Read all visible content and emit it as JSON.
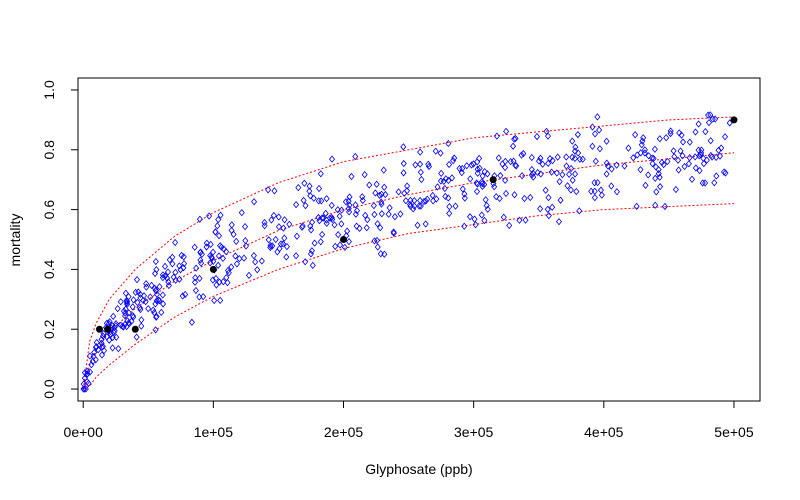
{
  "chart_data": {
    "type": "scatter",
    "title": "",
    "xlabel": "Glyphosate (ppb)",
    "ylabel": "mortality",
    "xlim": [
      -4000,
      520000
    ],
    "ylim": [
      -0.04,
      1.04
    ],
    "x_ticks": [
      0,
      100000,
      200000,
      300000,
      400000,
      500000
    ],
    "x_tick_labels": [
      "0e+00",
      "1e+05",
      "2e+05",
      "3e+05",
      "4e+05",
      "5e+05"
    ],
    "y_ticks": [
      0.0,
      0.2,
      0.4,
      0.6,
      0.8,
      1.0
    ],
    "y_tick_labels": [
      "0.0",
      "0.2",
      "0.4",
      "0.6",
      "0.8",
      "1.0"
    ],
    "grid": false,
    "legend": "none",
    "colors": {
      "simulated": "#0000ff",
      "observed": "#000000",
      "curves": "#ff0000"
    },
    "observed_points": {
      "x": [
        12500,
        18750,
        40000,
        100000,
        200000,
        315000,
        500000
      ],
      "y": [
        0.2,
        0.2,
        0.2,
        0.4,
        0.5,
        0.7,
        0.9
      ]
    },
    "simulated_points": {
      "count": 600,
      "marker": "open-diamond",
      "x_range": [
        0,
        500000
      ],
      "description_curve": "mean"
    },
    "mean_curve": {
      "x": [
        0,
        5000,
        10000,
        20000,
        40000,
        70000,
        100000,
        150000,
        200000,
        250000,
        300000,
        350000,
        400000,
        450000,
        500000
      ],
      "y": [
        0.0,
        0.08,
        0.13,
        0.19,
        0.27,
        0.36,
        0.43,
        0.53,
        0.6,
        0.65,
        0.69,
        0.72,
        0.75,
        0.77,
        0.79
      ]
    },
    "upper_band": {
      "x": [
        0,
        5000,
        10000,
        20000,
        40000,
        70000,
        100000,
        150000,
        200000,
        250000,
        300000,
        350000,
        400000,
        450000,
        500000
      ],
      "y": [
        0.0,
        0.16,
        0.22,
        0.3,
        0.4,
        0.51,
        0.59,
        0.69,
        0.76,
        0.8,
        0.84,
        0.86,
        0.88,
        0.9,
        0.91
      ]
    },
    "lower_band": {
      "x": [
        0,
        5000,
        10000,
        20000,
        40000,
        70000,
        100000,
        150000,
        200000,
        250000,
        300000,
        350000,
        400000,
        450000,
        500000
      ],
      "y": [
        0.0,
        0.01,
        0.04,
        0.08,
        0.15,
        0.24,
        0.31,
        0.4,
        0.47,
        0.52,
        0.55,
        0.58,
        0.6,
        0.61,
        0.62
      ]
    }
  }
}
